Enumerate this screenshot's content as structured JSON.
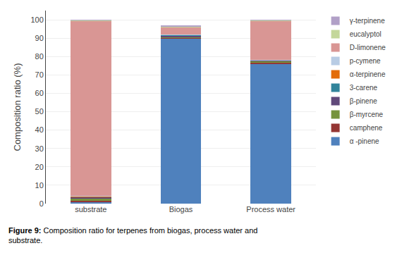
{
  "chart_data": {
    "type": "bar",
    "stacked": true,
    "categories": [
      "substrate",
      "Biogas",
      "Process water"
    ],
    "series": [
      {
        "name": "α -pinene",
        "color": "#4F81BD",
        "values": [
          1.0,
          90.0,
          76.0
        ]
      },
      {
        "name": "camphene",
        "color": "#943634",
        "values": [
          0.5,
          0.3,
          1.0
        ]
      },
      {
        "name": "β-myrcene",
        "color": "#76933C",
        "values": [
          1.5,
          0.5,
          0.5
        ]
      },
      {
        "name": "β-pinene",
        "color": "#60497A",
        "values": [
          0.5,
          0.5,
          0.3
        ]
      },
      {
        "name": "3-carene",
        "color": "#31849B",
        "values": [
          0.3,
          0.3,
          0.2
        ]
      },
      {
        "name": "α-terpinene",
        "color": "#E36C09",
        "values": [
          0.2,
          0.2,
          0.1
        ]
      },
      {
        "name": "p-cymene",
        "color": "#B8CCE4",
        "values": [
          0.2,
          0.2,
          0.2
        ]
      },
      {
        "name": "D-limonene",
        "color": "#D99694",
        "values": [
          95.3,
          4.0,
          21.2
        ]
      },
      {
        "name": "eucalyptol",
        "color": "#C4D79B",
        "values": [
          0.2,
          0.5,
          0.3
        ]
      },
      {
        "name": "γ-terpinene",
        "color": "#B1A0C7",
        "values": [
          0.3,
          0.5,
          0.2
        ]
      }
    ],
    "ylabel": "Composition ratio (%)",
    "ylim": [
      0,
      105
    ],
    "yticks": [
      0,
      10,
      20,
      30,
      40,
      50,
      60,
      70,
      80,
      90,
      100
    ],
    "grid": true,
    "legend": "right",
    "annotations": [
      "Figure 9:",
      "Composition ratio for terpenes from biogas, process water and\nsubstrate."
    ]
  }
}
